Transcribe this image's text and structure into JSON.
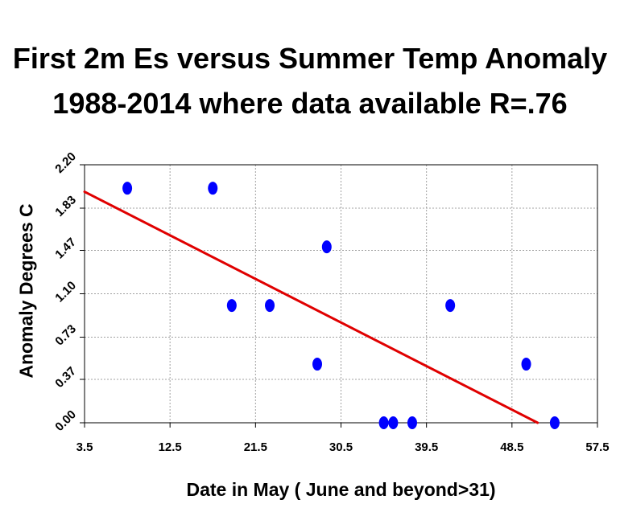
{
  "chart_data": {
    "type": "scatter",
    "title_lines": [
      "First 2m Es versus Summer Temp Anomaly",
      "1988-2014 where data available  R=.76"
    ],
    "xlabel": "Date in May ( June and beyond>31)",
    "ylabel": "Anomaly Degrees C",
    "xlim": [
      3.5,
      57.5
    ],
    "ylim": [
      0.0,
      2.2
    ],
    "x_ticks": [
      "3.5",
      "12.5",
      "21.5",
      "30.5",
      "39.5",
      "48.5",
      "57.5"
    ],
    "y_ticks": [
      "0.00",
      "0.37",
      "0.73",
      "1.10",
      "1.47",
      "1.83",
      "2.20"
    ],
    "grid": true,
    "points": [
      {
        "x": 8.0,
        "y": 2.0
      },
      {
        "x": 17.0,
        "y": 2.0
      },
      {
        "x": 19.0,
        "y": 1.0
      },
      {
        "x": 23.0,
        "y": 1.0
      },
      {
        "x": 28.0,
        "y": 0.5
      },
      {
        "x": 29.0,
        "y": 1.5
      },
      {
        "x": 35.0,
        "y": 0.0
      },
      {
        "x": 36.0,
        "y": 0.0
      },
      {
        "x": 38.0,
        "y": 0.0
      },
      {
        "x": 42.0,
        "y": 1.0
      },
      {
        "x": 50.0,
        "y": 0.5
      },
      {
        "x": 53.0,
        "y": 0.0
      }
    ],
    "trend_line": {
      "x1": 3.5,
      "y1": 1.97,
      "x2": 51.2,
      "y2": 0.0
    },
    "colors": {
      "points": "#0000ff",
      "trend_line": "#e00000",
      "grid": "#a0a0a0",
      "axes": "#000000"
    }
  }
}
